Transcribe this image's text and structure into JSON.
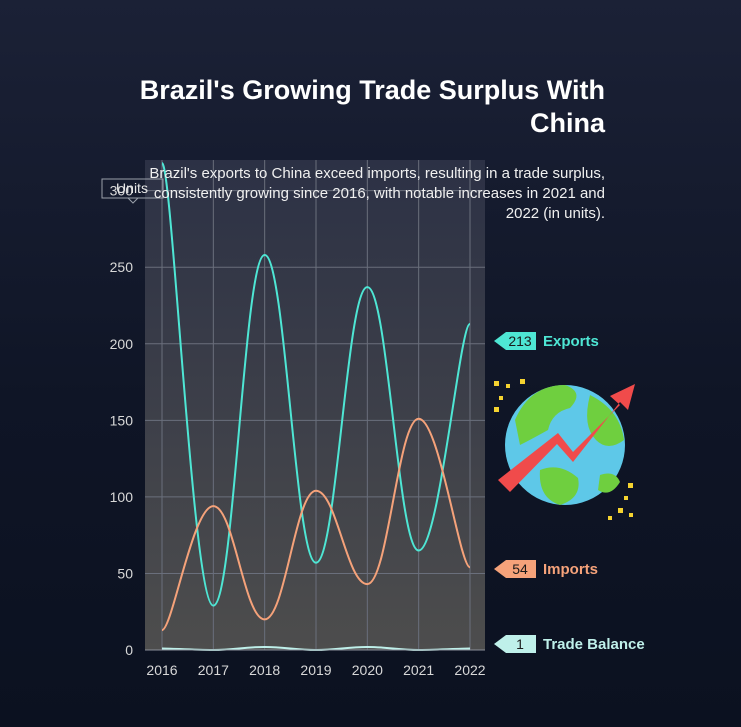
{
  "chart_data": {
    "type": "line",
    "title": "Brazil's Growing Trade Surplus With China",
    "subtitle": "Brazil's exports to China exceed imports, resulting in a trade surplus, consistently growing since 2016, with notable increases in 2021 and 2022 (in units).",
    "ylabel": "Units",
    "xlabel": "",
    "categories": [
      "2016",
      "2017",
      "2018",
      "2019",
      "2020",
      "2021",
      "2022"
    ],
    "ylim": [
      0,
      320
    ],
    "yticks": [
      0,
      50,
      100,
      150,
      200,
      250,
      300
    ],
    "grid": true,
    "series": [
      {
        "name": "Exports",
        "values": [
          318,
          29,
          258,
          57,
          237,
          65,
          213
        ],
        "color": "#4ee6d4",
        "end_label": "213"
      },
      {
        "name": "Imports",
        "values": [
          13,
          94,
          20,
          104,
          43,
          151,
          54
        ],
        "color": "#f5a27a",
        "end_label": "54"
      },
      {
        "name": "Trade Balance",
        "values": [
          1,
          0,
          2,
          0,
          2,
          0,
          1
        ],
        "color": "#bff0ea",
        "end_label": "1"
      }
    ],
    "legend": "right, at line ends"
  },
  "decoration": {
    "icon": "globe-growth-arrow-icon",
    "colors": {
      "ocean": "#5ec8e8",
      "land": "#6fcf3f",
      "arrow": "#f04b4b",
      "sparkle": "#f5d330"
    }
  }
}
